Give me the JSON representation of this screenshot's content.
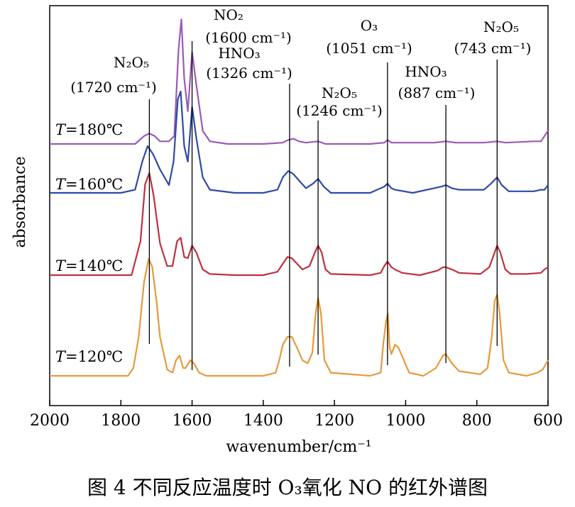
{
  "chart_data": {
    "type": "line",
    "xlabel": "wavenumber/cm⁻¹",
    "ylabel": "absorbance",
    "xlim": [
      2000,
      600
    ],
    "x_ticks": [
      2000,
      1800,
      1600,
      1400,
      1200,
      1000,
      800,
      600
    ],
    "y_ticks_shown": false,
    "grid": false,
    "series": [
      {
        "name": "T=180℃",
        "color": "#9B59B6",
        "points": [
          [
            2000,
            0.0
          ],
          [
            1800,
            0.0
          ],
          [
            1760,
            0.0
          ],
          [
            1735,
            0.06
          ],
          [
            1720,
            0.08
          ],
          [
            1705,
            0.06
          ],
          [
            1690,
            0.02
          ],
          [
            1665,
            0.02
          ],
          [
            1650,
            0.06
          ],
          [
            1638,
            0.72
          ],
          [
            1630,
            0.95
          ],
          [
            1622,
            0.5
          ],
          [
            1612,
            0.25
          ],
          [
            1600,
            0.7
          ],
          [
            1588,
            0.45
          ],
          [
            1570,
            0.1
          ],
          [
            1550,
            0.02
          ],
          [
            1500,
            0.0
          ],
          [
            1400,
            0.0
          ],
          [
            1345,
            0.01
          ],
          [
            1330,
            0.03
          ],
          [
            1315,
            0.04
          ],
          [
            1300,
            0.02
          ],
          [
            1280,
            0.01
          ],
          [
            1246,
            0.02
          ],
          [
            1225,
            0.0
          ],
          [
            1100,
            0.0
          ],
          [
            1060,
            0.01
          ],
          [
            1051,
            0.03
          ],
          [
            1040,
            0.01
          ],
          [
            920,
            0.01
          ],
          [
            887,
            0.02
          ],
          [
            860,
            0.01
          ],
          [
            780,
            0.01
          ],
          [
            743,
            0.02
          ],
          [
            720,
            0.01
          ],
          [
            640,
            0.02
          ],
          [
            620,
            0.02
          ],
          [
            610,
            0.06
          ],
          [
            600,
            0.1
          ]
        ]
      },
      {
        "name": "T=160℃",
        "color": "#2E4AA6",
        "points": [
          [
            2000,
            0.0
          ],
          [
            1800,
            0.0
          ],
          [
            1760,
            0.02
          ],
          [
            1740,
            0.2
          ],
          [
            1725,
            0.3
          ],
          [
            1710,
            0.25
          ],
          [
            1690,
            0.15
          ],
          [
            1665,
            0.05
          ],
          [
            1652,
            0.2
          ],
          [
            1640,
            0.6
          ],
          [
            1632,
            0.65
          ],
          [
            1622,
            0.3
          ],
          [
            1612,
            0.2
          ],
          [
            1600,
            0.55
          ],
          [
            1588,
            0.35
          ],
          [
            1570,
            0.1
          ],
          [
            1550,
            0.02
          ],
          [
            1480,
            0.0
          ],
          [
            1400,
            0.0
          ],
          [
            1360,
            0.02
          ],
          [
            1345,
            0.1
          ],
          [
            1330,
            0.14
          ],
          [
            1315,
            0.12
          ],
          [
            1300,
            0.08
          ],
          [
            1280,
            0.03
          ],
          [
            1260,
            0.06
          ],
          [
            1246,
            0.09
          ],
          [
            1230,
            0.04
          ],
          [
            1210,
            0.0
          ],
          [
            1100,
            0.0
          ],
          [
            1060,
            0.04
          ],
          [
            1051,
            0.06
          ],
          [
            1040,
            0.03
          ],
          [
            1030,
            0.02
          ],
          [
            980,
            0.0
          ],
          [
            900,
            0.04
          ],
          [
            887,
            0.05
          ],
          [
            870,
            0.03
          ],
          [
            850,
            0.02
          ],
          [
            780,
            0.02
          ],
          [
            760,
            0.06
          ],
          [
            743,
            0.1
          ],
          [
            730,
            0.05
          ],
          [
            710,
            0.01
          ],
          [
            640,
            0.01
          ],
          [
            620,
            0.02
          ],
          [
            610,
            0.02
          ],
          [
            600,
            0.05
          ]
        ]
      },
      {
        "name": "T=140℃",
        "color": "#C0303E",
        "points": [
          [
            2000,
            0.0
          ],
          [
            1800,
            0.0
          ],
          [
            1770,
            0.0
          ],
          [
            1745,
            0.3
          ],
          [
            1732,
            0.8
          ],
          [
            1720,
            0.9
          ],
          [
            1708,
            0.7
          ],
          [
            1690,
            0.28
          ],
          [
            1670,
            0.08
          ],
          [
            1655,
            0.08
          ],
          [
            1642,
            0.3
          ],
          [
            1632,
            0.33
          ],
          [
            1622,
            0.16
          ],
          [
            1612,
            0.15
          ],
          [
            1600,
            0.26
          ],
          [
            1588,
            0.2
          ],
          [
            1570,
            0.05
          ],
          [
            1550,
            0.01
          ],
          [
            1480,
            0.0
          ],
          [
            1400,
            0.0
          ],
          [
            1360,
            0.03
          ],
          [
            1345,
            0.1
          ],
          [
            1332,
            0.16
          ],
          [
            1320,
            0.15
          ],
          [
            1305,
            0.1
          ],
          [
            1290,
            0.05
          ],
          [
            1270,
            0.08
          ],
          [
            1255,
            0.2
          ],
          [
            1246,
            0.26
          ],
          [
            1236,
            0.2
          ],
          [
            1225,
            0.05
          ],
          [
            1210,
            0.01
          ],
          [
            1100,
            0.0
          ],
          [
            1070,
            0.02
          ],
          [
            1060,
            0.08
          ],
          [
            1051,
            0.12
          ],
          [
            1040,
            0.07
          ],
          [
            1030,
            0.05
          ],
          [
            1010,
            0.02
          ],
          [
            960,
            0.0
          ],
          [
            910,
            0.04
          ],
          [
            895,
            0.07
          ],
          [
            887,
            0.07
          ],
          [
            870,
            0.05
          ],
          [
            850,
            0.02
          ],
          [
            790,
            0.01
          ],
          [
            765,
            0.07
          ],
          [
            750,
            0.2
          ],
          [
            743,
            0.26
          ],
          [
            734,
            0.2
          ],
          [
            720,
            0.05
          ],
          [
            705,
            0.01
          ],
          [
            660,
            0.01
          ],
          [
            620,
            0.02
          ],
          [
            610,
            0.05
          ],
          [
            600,
            0.07
          ]
        ]
      },
      {
        "name": "T=120℃",
        "color": "#E69A3A",
        "points": [
          [
            2000,
            0.0
          ],
          [
            1800,
            0.0
          ],
          [
            1780,
            0.0
          ],
          [
            1765,
            0.05
          ],
          [
            1750,
            0.25
          ],
          [
            1735,
            0.6
          ],
          [
            1722,
            0.75
          ],
          [
            1712,
            0.7
          ],
          [
            1700,
            0.48
          ],
          [
            1690,
            0.25
          ],
          [
            1670,
            0.04
          ],
          [
            1655,
            0.02
          ],
          [
            1645,
            0.1
          ],
          [
            1635,
            0.13
          ],
          [
            1625,
            0.05
          ],
          [
            1618,
            0.05
          ],
          [
            1605,
            0.1
          ],
          [
            1595,
            0.08
          ],
          [
            1580,
            0.02
          ],
          [
            1560,
            0.0
          ],
          [
            1400,
            0.0
          ],
          [
            1365,
            0.02
          ],
          [
            1355,
            0.1
          ],
          [
            1345,
            0.2
          ],
          [
            1332,
            0.25
          ],
          [
            1320,
            0.25
          ],
          [
            1305,
            0.18
          ],
          [
            1290,
            0.1
          ],
          [
            1275,
            0.08
          ],
          [
            1262,
            0.15
          ],
          [
            1253,
            0.4
          ],
          [
            1246,
            0.5
          ],
          [
            1238,
            0.4
          ],
          [
            1228,
            0.1
          ],
          [
            1210,
            0.02
          ],
          [
            1100,
            0.0
          ],
          [
            1070,
            0.02
          ],
          [
            1062,
            0.22
          ],
          [
            1055,
            0.35
          ],
          [
            1050,
            0.4
          ],
          [
            1045,
            0.18
          ],
          [
            1040,
            0.14
          ],
          [
            1030,
            0.2
          ],
          [
            1020,
            0.18
          ],
          [
            1005,
            0.1
          ],
          [
            990,
            0.02
          ],
          [
            950,
            0.0
          ],
          [
            915,
            0.05
          ],
          [
            895,
            0.13
          ],
          [
            887,
            0.14
          ],
          [
            870,
            0.08
          ],
          [
            850,
            0.03
          ],
          [
            790,
            0.01
          ],
          [
            770,
            0.05
          ],
          [
            758,
            0.25
          ],
          [
            750,
            0.48
          ],
          [
            743,
            0.52
          ],
          [
            736,
            0.4
          ],
          [
            725,
            0.1
          ],
          [
            710,
            0.02
          ],
          [
            660,
            0.0
          ],
          [
            630,
            0.02
          ],
          [
            615,
            0.04
          ],
          [
            605,
            0.08
          ],
          [
            600,
            0.1
          ]
        ]
      }
    ],
    "temperature_labels": [
      {
        "italic": "T",
        "rest": "=180℃"
      },
      {
        "italic": "T",
        "rest": "=160℃"
      },
      {
        "italic": "T",
        "rest": "=140℃"
      },
      {
        "italic": "T",
        "rest": "=120℃"
      }
    ],
    "annotations": [
      {
        "line1": "N₂O₅",
        "line2": "(1720 cm⁻¹)",
        "x": 1720
      },
      {
        "line1": "NO₂",
        "line2": "(1600 cm⁻¹)",
        "x": 1600
      },
      {
        "line1": "HNO₃",
        "line2": "(1326 cm⁻¹)",
        "x": 1326
      },
      {
        "line1": "N₂O₅",
        "line2": "(1246 cm⁻¹)",
        "x": 1246
      },
      {
        "line1": "O₃",
        "line2": "(1051 cm⁻¹)",
        "x": 1051
      },
      {
        "line1": "HNO₃",
        "line2": "(887 cm⁻¹)",
        "x": 887
      },
      {
        "line1": "N₂O₅",
        "line2": "(743 cm⁻¹)",
        "x": 743
      }
    ]
  },
  "caption": "图 4   不同反应温度时 O₃氧化 NO 的红外谱图"
}
